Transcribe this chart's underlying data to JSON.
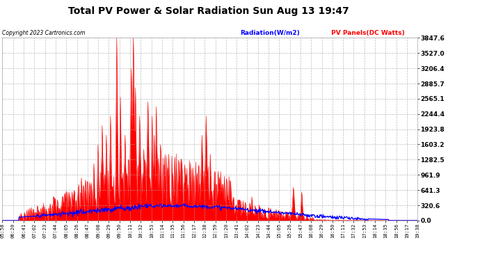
{
  "title": "Total PV Power & Solar Radiation Sun Aug 13 19:47",
  "copyright": "Copyright 2023 Cartronics.com",
  "legend_radiation": "Radiation(W/m2)",
  "legend_pv": " PV Panels(DC Watts)",
  "ymax": 3847.6,
  "ymin": 0.0,
  "yticks": [
    0.0,
    320.6,
    641.3,
    961.9,
    1282.5,
    1603.2,
    1923.8,
    2244.4,
    2565.1,
    2885.7,
    3206.4,
    3527.0,
    3847.6
  ],
  "xtick_labels": [
    "05:58",
    "06:20",
    "06:41",
    "07:02",
    "07:23",
    "07:44",
    "08:05",
    "08:26",
    "08:47",
    "09:08",
    "09:29",
    "09:50",
    "10:11",
    "10:32",
    "10:53",
    "11:14",
    "11:35",
    "11:56",
    "12:17",
    "12:38",
    "12:59",
    "13:20",
    "13:41",
    "14:02",
    "14:23",
    "14:44",
    "15:05",
    "15:26",
    "15:47",
    "16:08",
    "16:29",
    "16:50",
    "17:11",
    "17:32",
    "17:53",
    "18:14",
    "18:35",
    "18:56",
    "19:17",
    "19:38"
  ],
  "plot_bg_color": "#ffffff",
  "grid_color": "#aaaaaa",
  "pv_color": "#ff0000",
  "radiation_color": "#0000ff",
  "title_color": "#000000",
  "outer_bg": "#ffffff"
}
